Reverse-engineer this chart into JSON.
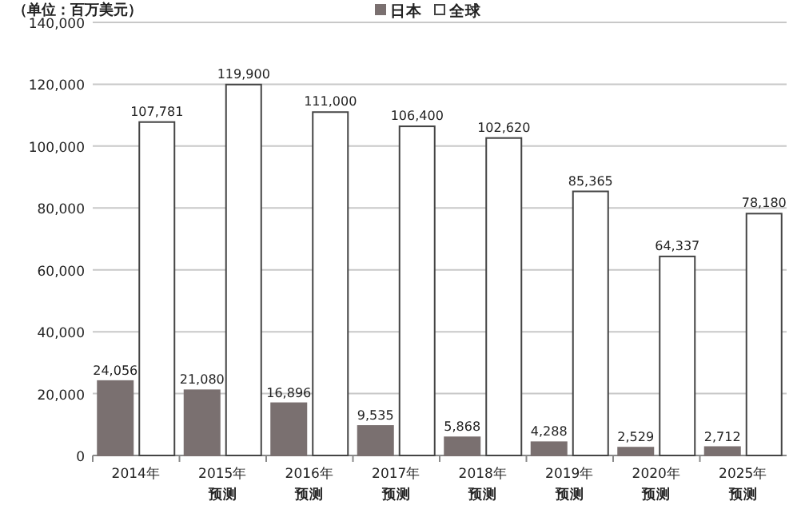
{
  "chart_data": {
    "type": "bar",
    "ylabel": "（单位：百万美元）",
    "categories": [
      "2014年",
      "2015年预测",
      "2016年预测",
      "2017年预测",
      "2018年预测",
      "2019年预测",
      "2020年预测",
      "2025年预测"
    ],
    "series": [
      {
        "name": "日本",
        "color": "#7a7070",
        "values": [
          24056,
          21080,
          16896,
          9535,
          5868,
          4288,
          2529,
          2712
        ],
        "value_labels": [
          "24,056",
          "21,080",
          "16,896",
          "9,535",
          "5,868",
          "4,288",
          "2,529",
          "2,712"
        ]
      },
      {
        "name": "全球",
        "color": "#ffffff",
        "values": [
          107781,
          119900,
          111000,
          106400,
          102620,
          85365,
          64337,
          78180
        ],
        "value_labels": [
          "107,781",
          "119,900",
          "111,000",
          "106,400",
          "102,620",
          "85,365",
          "64,337",
          "78,180"
        ]
      }
    ],
    "ylim": [
      0,
      140000
    ],
    "yticks": [
      {
        "value": 0,
        "label": "0"
      },
      {
        "value": 20000,
        "label": "20,000"
      },
      {
        "value": 40000,
        "label": "40,000"
      },
      {
        "value": 60000,
        "label": "60,000"
      },
      {
        "value": 80000,
        "label": "80,000"
      },
      {
        "value": 100000,
        "label": "100,000"
      },
      {
        "value": 120000,
        "label": "120,000"
      },
      {
        "value": 140000,
        "label": "140,000"
      }
    ],
    "grid": "y",
    "legend": "top"
  }
}
